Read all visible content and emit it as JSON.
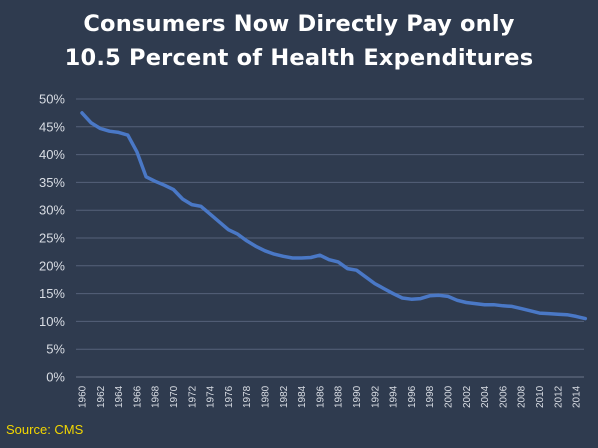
{
  "title": {
    "line1": "Consumers Now Directly Pay only",
    "line2": "10.5 Percent of Health Expenditures"
  },
  "source": "Source: CMS",
  "colors": {
    "background": "#2f3b4f",
    "line": "#4a78c6",
    "grid": "#56627a",
    "text": "#ffffff",
    "source": "#f2d600"
  },
  "chart_data": {
    "type": "line",
    "title": "Consumers Now Directly Pay only 10.5 Percent of Health Expenditures",
    "xlabel": "",
    "ylabel": "",
    "ylim": [
      0,
      50
    ],
    "xlim": [
      1960,
      2015
    ],
    "grid": true,
    "legend": "none",
    "y_ticks": [
      "0%",
      "5%",
      "10%",
      "15%",
      "20%",
      "25%",
      "30%",
      "35%",
      "40%",
      "45%",
      "50%"
    ],
    "x_ticks": [
      "1960",
      "1962",
      "1964",
      "1966",
      "1968",
      "1970",
      "1972",
      "1974",
      "1976",
      "1978",
      "1980",
      "1982",
      "1984",
      "1986",
      "1988",
      "1990",
      "1992",
      "1994",
      "1996",
      "1998",
      "2000",
      "2002",
      "2004",
      "2006",
      "2008",
      "2010",
      "2012",
      "2014"
    ],
    "x": [
      1960,
      1961,
      1962,
      1963,
      1964,
      1965,
      1966,
      1967,
      1968,
      1969,
      1970,
      1971,
      1972,
      1973,
      1974,
      1975,
      1976,
      1977,
      1978,
      1979,
      1980,
      1981,
      1982,
      1983,
      1984,
      1985,
      1986,
      1987,
      1988,
      1989,
      1990,
      1991,
      1992,
      1993,
      1994,
      1995,
      1996,
      1997,
      1998,
      1999,
      2000,
      2001,
      2002,
      2003,
      2004,
      2005,
      2006,
      2007,
      2008,
      2009,
      2010,
      2011,
      2012,
      2013,
      2014,
      2015
    ],
    "series": [
      {
        "values": [
          47.5,
          45.7,
          44.7,
          44.2,
          44.0,
          43.5,
          40.5,
          36.0,
          35.2,
          34.5,
          33.7,
          32.0,
          31.0,
          30.7,
          29.3,
          27.9,
          26.5,
          25.7,
          24.5,
          23.5,
          22.7,
          22.1,
          21.7,
          21.4,
          21.4,
          21.5,
          21.9,
          21.1,
          20.7,
          19.5,
          19.2,
          18.0,
          16.8,
          15.9,
          15.0,
          14.2,
          14.0,
          14.1,
          14.6,
          14.7,
          14.5,
          13.8,
          13.4,
          13.2,
          13.0,
          13.0,
          12.8,
          12.7,
          12.3,
          11.9,
          11.5,
          11.4,
          11.3,
          11.2,
          10.9,
          10.5
        ]
      }
    ]
  }
}
